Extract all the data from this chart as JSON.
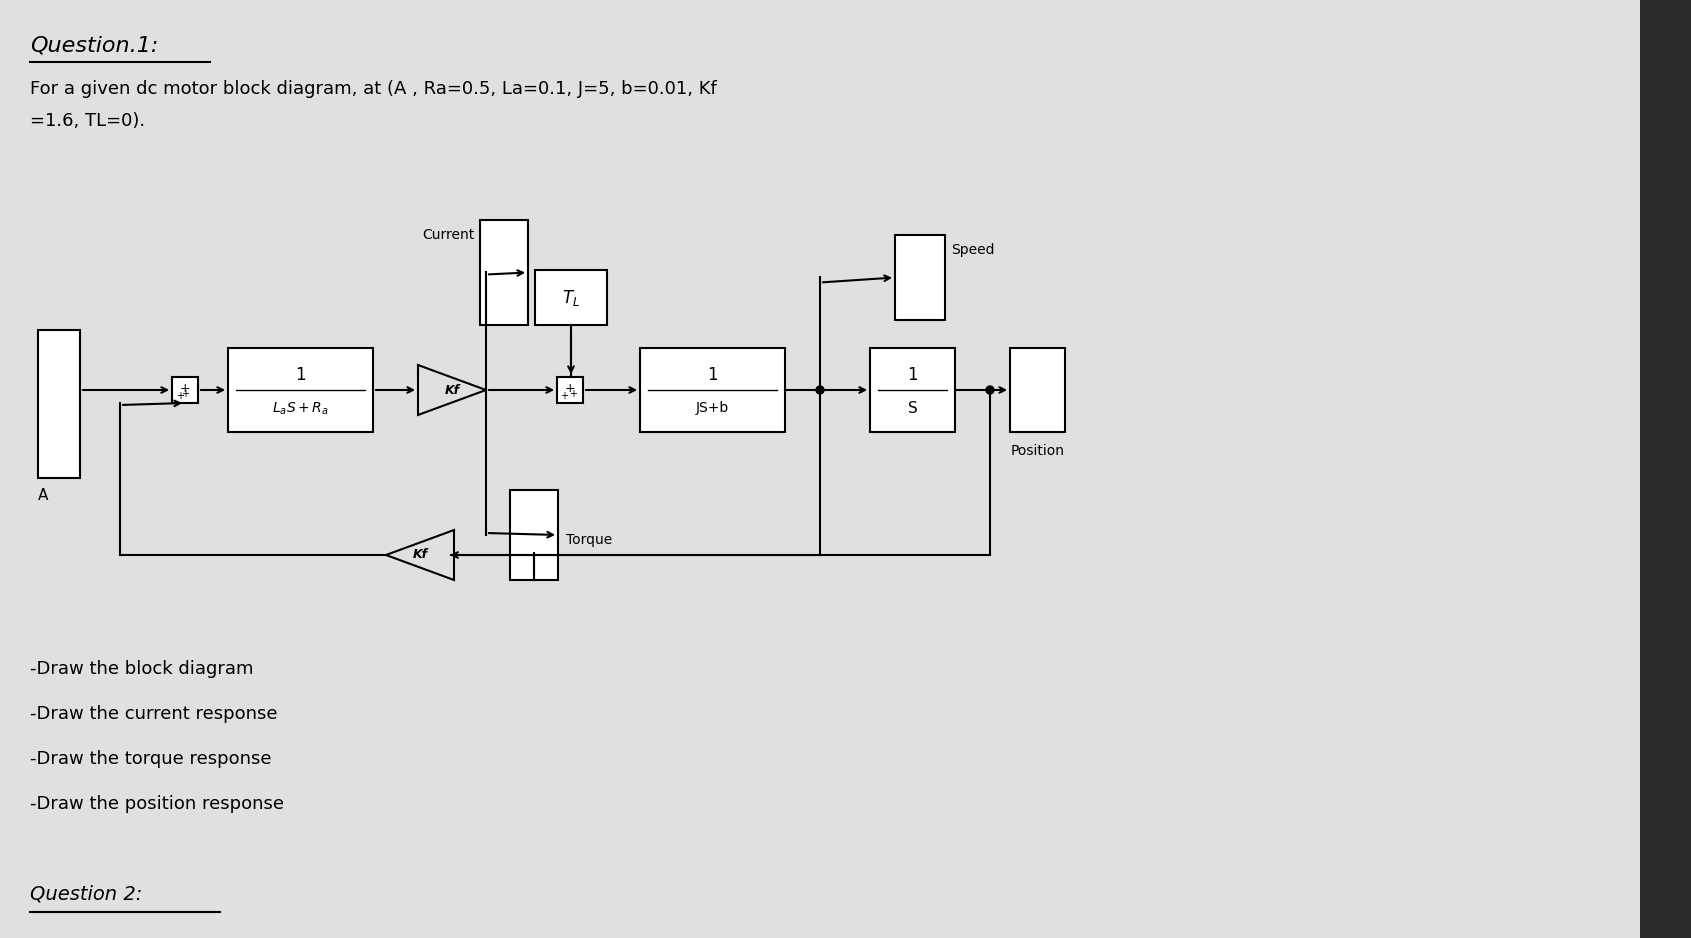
{
  "title": "Question.1:",
  "subtitle_line1": "For a given dc motor block diagram, at (A , Ra=0.5, La=0.1, J=5, b=0.01, Kf",
  "subtitle_line2": "=1.6, TL=0).",
  "tasks": [
    "-Draw the block diagram",
    "-Draw the current response",
    "-Draw the torque response",
    "-Draw the position response"
  ],
  "bg_color": "#e0e0e0",
  "block_color": "#ffffff",
  "block_edge": "#000000",
  "text_color": "#000000",
  "line_color": "#000000",
  "question2_label": "Question 2:"
}
